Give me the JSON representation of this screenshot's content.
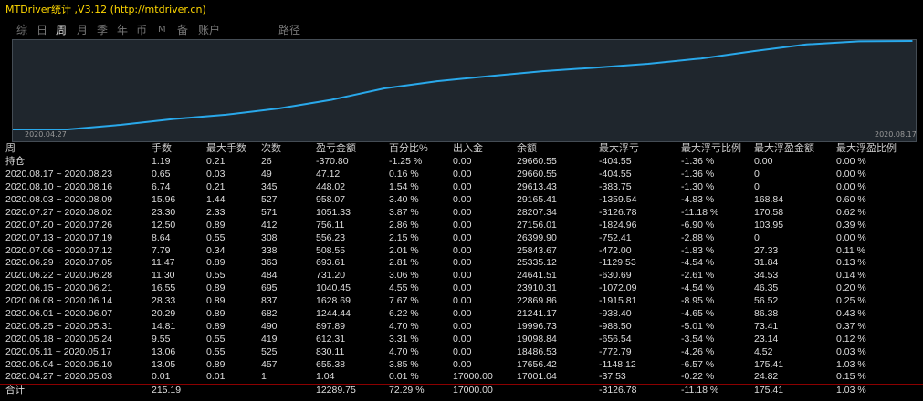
{
  "title": "MTDriver统计 ,V3.12 (http://mtdriver.cn)",
  "tabs": [
    "综",
    "日",
    "周",
    "月",
    "季",
    "年",
    "币",
    "M",
    "备",
    "账户",
    "路径"
  ],
  "active_tab": "周",
  "chart": {
    "start_date": "2020.04.27",
    "end_date": "2020.08.17",
    "line_color": "#29a8ea",
    "background": "#1f262d"
  },
  "chart_data": {
    "type": "line",
    "x": [
      "2020.04.27",
      "2020.05.04",
      "2020.05.11",
      "2020.05.18",
      "2020.05.25",
      "2020.06.01",
      "2020.06.08",
      "2020.06.15",
      "2020.06.22",
      "2020.06.29",
      "2020.07.06",
      "2020.07.13",
      "2020.07.20",
      "2020.07.27",
      "2020.08.03",
      "2020.08.10",
      "2020.08.17"
    ],
    "values": [
      17001.04,
      17656.42,
      18486.53,
      19098.84,
      19996.73,
      21241.17,
      22869.86,
      23910.31,
      24641.51,
      25335.12,
      25843.67,
      26399.9,
      27156.01,
      28207.34,
      29165.41,
      29613.43,
      29660.55
    ]
  },
  "headers": [
    "周",
    "手数",
    "最大手数",
    "次数",
    "盈亏金额",
    "百分比%",
    "出入金",
    "余额",
    "最大浮亏",
    "最大浮亏比例",
    "最大浮盈金额",
    "最大浮盈比例"
  ],
  "holding": [
    "持仓",
    "1.19",
    "0.21",
    "26",
    "-370.80",
    "-1.25 %",
    "0.00",
    "29660.55",
    "-404.55",
    "-1.36 %",
    "0.00",
    "0.00 %"
  ],
  "rows": [
    [
      "2020.08.17 ~ 2020.08.23",
      "0.65",
      "0.03",
      "49",
      "47.12",
      "0.16 %",
      "0.00",
      "29660.55",
      "-404.55",
      "-1.36 %",
      "0",
      "0.00 %"
    ],
    [
      "2020.08.10 ~ 2020.08.16",
      "6.74",
      "0.21",
      "345",
      "448.02",
      "1.54 %",
      "0.00",
      "29613.43",
      "-383.75",
      "-1.30 %",
      "0",
      "0.00 %"
    ],
    [
      "2020.08.03 ~ 2020.08.09",
      "15.96",
      "1.44",
      "527",
      "958.07",
      "3.40 %",
      "0.00",
      "29165.41",
      "-1359.54",
      "-4.83 %",
      "168.84",
      "0.60 %"
    ],
    [
      "2020.07.27 ~ 2020.08.02",
      "23.30",
      "2.33",
      "571",
      "1051.33",
      "3.87 %",
      "0.00",
      "28207.34",
      "-3126.78",
      "-11.18 %",
      "170.58",
      "0.62 %"
    ],
    [
      "2020.07.20 ~ 2020.07.26",
      "12.50",
      "0.89",
      "412",
      "756.11",
      "2.86 %",
      "0.00",
      "27156.01",
      "-1824.96",
      "-6.90 %",
      "103.95",
      "0.39 %"
    ],
    [
      "2020.07.13 ~ 2020.07.19",
      "8.64",
      "0.55",
      "308",
      "556.23",
      "2.15 %",
      "0.00",
      "26399.90",
      "-752.41",
      "-2.88 %",
      "0",
      "0.00 %"
    ],
    [
      "2020.07.06 ~ 2020.07.12",
      "7.79",
      "0.34",
      "338",
      "508.55",
      "2.01 %",
      "0.00",
      "25843.67",
      "-472.00",
      "-1.83 %",
      "27.33",
      "0.11 %"
    ],
    [
      "2020.06.29 ~ 2020.07.05",
      "11.47",
      "0.89",
      "363",
      "693.61",
      "2.81 %",
      "0.00",
      "25335.12",
      "-1129.53",
      "-4.54 %",
      "31.84",
      "0.13 %"
    ],
    [
      "2020.06.22 ~ 2020.06.28",
      "11.30",
      "0.55",
      "484",
      "731.20",
      "3.06 %",
      "0.00",
      "24641.51",
      "-630.69",
      "-2.61 %",
      "34.53",
      "0.14 %"
    ],
    [
      "2020.06.15 ~ 2020.06.21",
      "16.55",
      "0.89",
      "695",
      "1040.45",
      "4.55 %",
      "0.00",
      "23910.31",
      "-1072.09",
      "-4.54 %",
      "46.35",
      "0.20 %"
    ],
    [
      "2020.06.08 ~ 2020.06.14",
      "28.33",
      "0.89",
      "837",
      "1628.69",
      "7.67 %",
      "0.00",
      "22869.86",
      "-1915.81",
      "-8.95 %",
      "56.52",
      "0.25 %"
    ],
    [
      "2020.06.01 ~ 2020.06.07",
      "20.29",
      "0.89",
      "682",
      "1244.44",
      "6.22 %",
      "0.00",
      "21241.17",
      "-938.40",
      "-4.65 %",
      "86.38",
      "0.43 %"
    ],
    [
      "2020.05.25 ~ 2020.05.31",
      "14.81",
      "0.89",
      "490",
      "897.89",
      "4.70 %",
      "0.00",
      "19996.73",
      "-988.50",
      "-5.01 %",
      "73.41",
      "0.37 %"
    ],
    [
      "2020.05.18 ~ 2020.05.24",
      "9.55",
      "0.55",
      "419",
      "612.31",
      "3.31 %",
      "0.00",
      "19098.84",
      "-656.54",
      "-3.54 %",
      "23.14",
      "0.12 %"
    ],
    [
      "2020.05.11 ~ 2020.05.17",
      "13.06",
      "0.55",
      "525",
      "830.11",
      "4.70 %",
      "0.00",
      "18486.53",
      "-772.79",
      "-4.26 %",
      "4.52",
      "0.03 %"
    ],
    [
      "2020.05.04 ~ 2020.05.10",
      "13.05",
      "0.89",
      "457",
      "655.38",
      "3.85 %",
      "0.00",
      "17656.42",
      "-1148.12",
      "-6.57 %",
      "175.41",
      "1.03 %"
    ],
    [
      "2020.04.27 ~ 2020.05.03",
      "0.01",
      "0.01",
      "1",
      "1.04",
      "0.01 %",
      "17000.00",
      "17001.04",
      "-37.53",
      "-0.22 %",
      "24.82",
      "0.15 %"
    ]
  ],
  "total": [
    "合计",
    "215.19",
    "",
    "",
    "12289.75",
    "72.29 %",
    "17000.00",
    "",
    "-3126.78",
    "-11.18 %",
    "175.41",
    "1.03 %"
  ],
  "colors": {
    "positive": "#d01515",
    "negative": "#4ccc4c",
    "title": "#ffd700"
  }
}
